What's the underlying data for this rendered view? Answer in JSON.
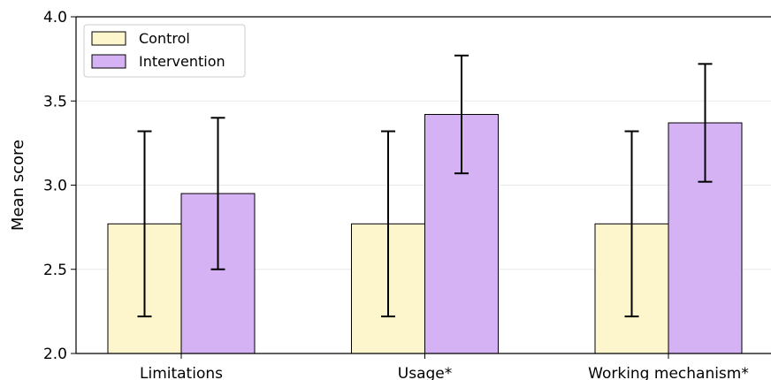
{
  "chart_data": {
    "type": "bar",
    "categories": [
      "Limitations",
      "Usage*",
      "Working mechanism*"
    ],
    "series": [
      {
        "name": "Control",
        "color": "#fdf6cc",
        "values": [
          2.77,
          2.77,
          2.77
        ],
        "error_low": [
          2.22,
          2.22,
          2.22
        ],
        "error_high": [
          3.32,
          3.32,
          3.32
        ]
      },
      {
        "name": "Intervention",
        "color": "#d4b2f4",
        "values": [
          2.95,
          3.42,
          3.37
        ],
        "error_low": [
          2.5,
          3.07,
          3.02
        ],
        "error_high": [
          3.4,
          3.77,
          3.72
        ]
      }
    ],
    "ylabel": "Mean score",
    "ylim": [
      2.0,
      4.0
    ],
    "yticks": [
      2.0,
      2.5,
      3.0,
      3.5,
      4.0
    ],
    "ytick_labels": [
      "2.0",
      "2.5",
      "3.0",
      "3.5",
      "4.0"
    ],
    "grid": "horizontal",
    "legend_position": "top-left"
  }
}
